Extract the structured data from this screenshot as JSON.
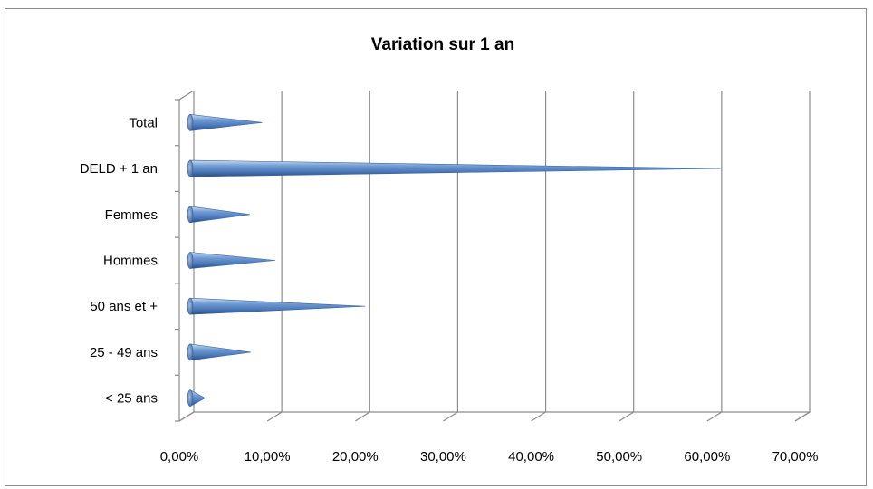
{
  "chart_data": {
    "type": "bar",
    "orientation": "horizontal",
    "shape": "cone",
    "title": "Variation sur 1 an",
    "xlabel": "",
    "ylabel": "",
    "categories": [
      "Total",
      "DELD + 1 an",
      "Femmes",
      "Hommes",
      "50 ans et +",
      "25 - 49 ans",
      "< 25 ans"
    ],
    "values": [
      0.086,
      0.607,
      0.072,
      0.101,
      0.203,
      0.073,
      0.021
    ],
    "xlim": [
      0,
      0.7
    ],
    "x_ticks": [
      0,
      0.1,
      0.2,
      0.3,
      0.4,
      0.5,
      0.6,
      0.7
    ],
    "x_tick_labels": [
      "0,00%",
      "10,00%",
      "20,00%",
      "30,00%",
      "40,00%",
      "50,00%",
      "60,00%",
      "70,00%"
    ],
    "grid": "vertical",
    "legend": "none",
    "colors": {
      "bar": "#4f81bd",
      "bar_light": "#a9c4e8",
      "bar_dark": "#2e4f7c",
      "grid": "#8c8c8c"
    }
  }
}
